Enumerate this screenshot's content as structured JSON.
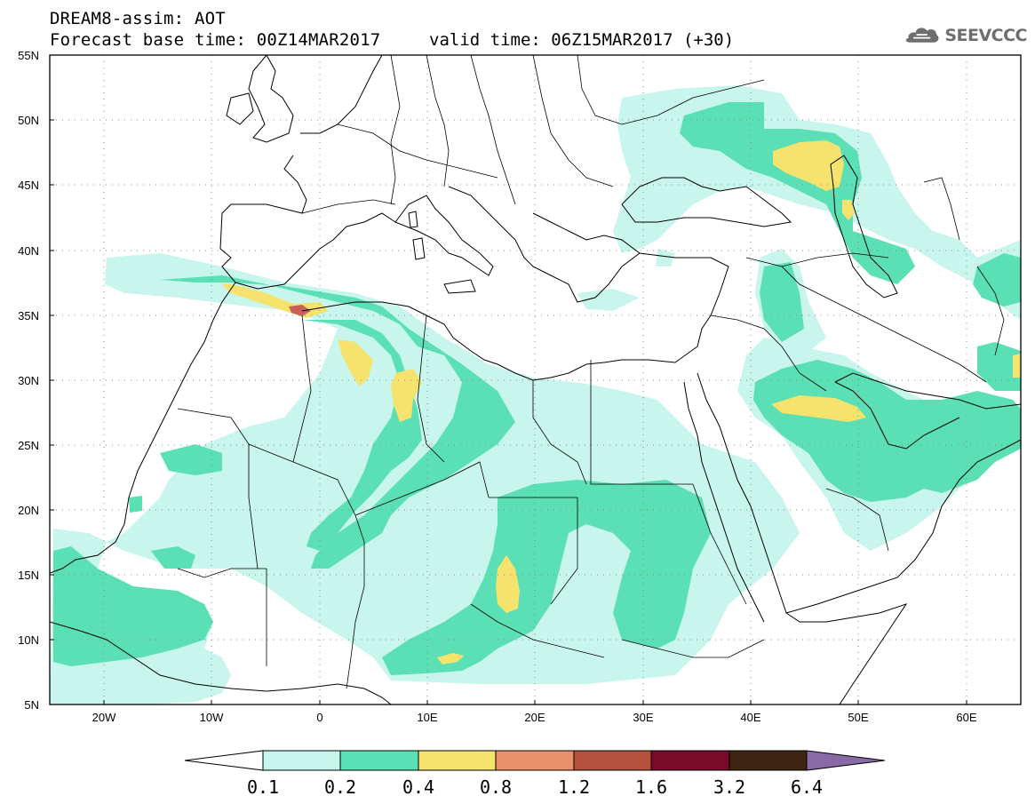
{
  "header": {
    "title": "DREAM8-assim: AOT",
    "forecast_base": "Forecast base time: 00Z14MAR2017",
    "valid_time": "valid time: 06Z15MAR2017 (+30)"
  },
  "logo": {
    "text": "SEEVCCC",
    "icon": "cloud-icon"
  },
  "map": {
    "lon_range": [
      -25,
      65
    ],
    "lat_range": [
      5,
      55
    ],
    "lat_labels": [
      "55N",
      "50N",
      "45N",
      "40N",
      "35N",
      "30N",
      "25N",
      "20N",
      "15N",
      "10N",
      "5N"
    ],
    "lon_labels": [
      "20W",
      "10W",
      "0",
      "10E",
      "20E",
      "30E",
      "40E",
      "50E",
      "60E"
    ],
    "grid": "dotted"
  },
  "colorbar": {
    "levels": [
      "0.1",
      "0.2",
      "0.4",
      "0.8",
      "1.2",
      "1.6",
      "3.2",
      "6.4"
    ],
    "colors": [
      "#c8f5ec",
      "#5ae0b4",
      "#f5e36e",
      "#e8906a",
      "#b5523e",
      "#7a0a2a",
      "#3e2412",
      "#8a6aa6"
    ],
    "under_color": "#ffffff",
    "colors_note": ""
  }
}
